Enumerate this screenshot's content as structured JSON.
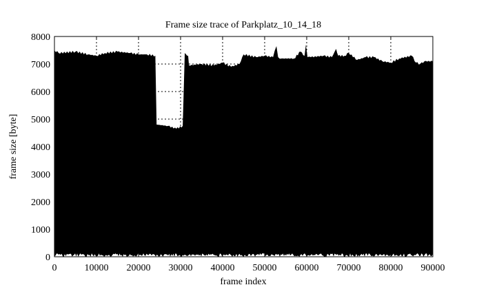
{
  "chart_data": {
    "type": "area",
    "title": "Frame size trace of Parkplatz_10_14_18",
    "xlabel": "frame index",
    "ylabel": "frame size [byte]",
    "xlim": [
      0,
      90000
    ],
    "ylim": [
      0,
      8000
    ],
    "xticks": [
      0,
      10000,
      20000,
      30000,
      40000,
      50000,
      60000,
      70000,
      80000,
      90000
    ],
    "yticks": [
      0,
      1000,
      2000,
      3000,
      4000,
      5000,
      6000,
      7000,
      8000
    ],
    "grid": true,
    "fill_color": "#000000",
    "series": [
      {
        "x": [
          0,
          1000,
          5000,
          8000,
          10000,
          12000,
          15000,
          18000,
          20000,
          22000,
          24000,
          24300,
          27000,
          29000,
          30500,
          31000,
          31300,
          31800,
          32000,
          35000,
          38000,
          40000,
          42000,
          44000,
          45000,
          48000,
          50000,
          52000,
          52800,
          53200,
          54000,
          57000,
          58500,
          59500,
          59800,
          60200,
          61000,
          64000,
          66000,
          67000,
          67500,
          69000,
          70000,
          72000,
          74000,
          76000,
          78000,
          80000,
          82000,
          85000,
          86000,
          87000,
          88000,
          90000
        ],
        "y": [
          7500,
          7400,
          7450,
          7350,
          7300,
          7400,
          7450,
          7400,
          7350,
          7350,
          7300,
          4800,
          4750,
          4650,
          4750,
          7400,
          7350,
          7300,
          6950,
          7000,
          6950,
          7050,
          6900,
          7000,
          7350,
          7250,
          7300,
          7250,
          7650,
          7250,
          7200,
          7200,
          7450,
          7300,
          7700,
          7250,
          7250,
          7300,
          7250,
          7550,
          7300,
          7300,
          7400,
          7150,
          7250,
          7250,
          7100,
          7050,
          7200,
          7300,
          7050,
          7000,
          7100,
          7100
        ]
      }
    ]
  }
}
